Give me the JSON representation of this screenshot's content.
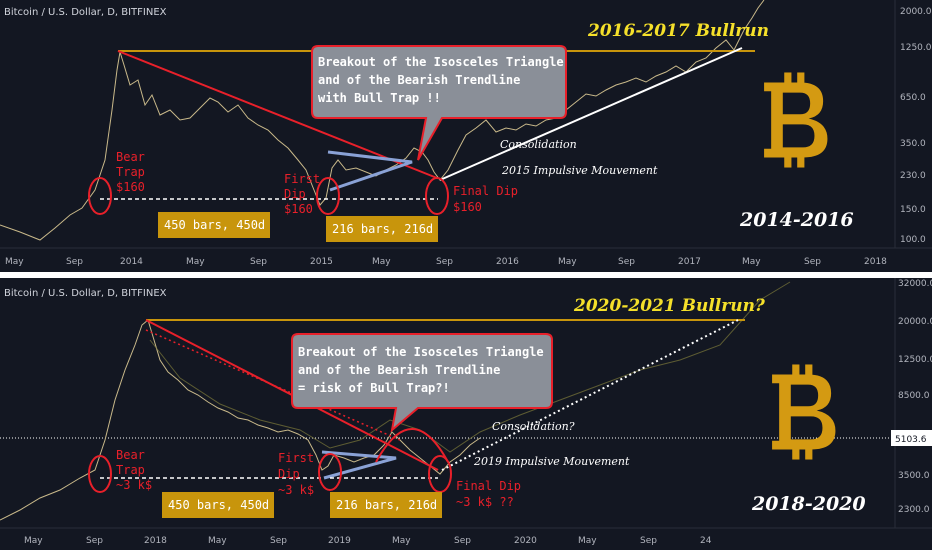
{
  "chart_data": [
    {
      "type": "line",
      "header": "Bitcoin / U.S. Dollar, D, BITFINEX",
      "bullrun_label": "2016-2017 Bullrun",
      "period_label": "2014-2016",
      "x_ticks": [
        "May",
        "Sep",
        "2014",
        "May",
        "Sep",
        "2015",
        "May",
        "Sep",
        "2016",
        "May",
        "Sep",
        "2017",
        "May",
        "Sep",
        "2018"
      ],
      "y_ticks": [
        "2000.0",
        "1250.0",
        "650.0",
        "350.0",
        "230.0",
        "150.0",
        "100.0"
      ],
      "annotations": {
        "bear_trap": [
          "Bear",
          "Trap",
          "$160"
        ],
        "first_dip": [
          "First",
          "Dip",
          "$160"
        ],
        "final_dip": [
          "Final Dip",
          "$160"
        ],
        "bars_1": "450 bars, 450d",
        "bars_2": "216 bars, 216d",
        "consolidation": "Consolidation",
        "impulsive": "2015 Impulsive Mouvement",
        "bubble": [
          "Breakout of the Isosceles Triangle",
          "and of the Bearish Trendline",
          "with Bull Trap !!"
        ]
      }
    },
    {
      "type": "line",
      "header": "Bitcoin / U.S. Dollar, D, BITFINEX",
      "bullrun_label": "2020-2021 Bullrun?",
      "period_label": "2018-2020",
      "x_ticks": [
        "May",
        "Sep",
        "2018",
        "May",
        "Sep",
        "2019",
        "May",
        "Sep",
        "2020",
        "May",
        "Sep",
        "24"
      ],
      "y_ticks": [
        "32000.0",
        "20000.0",
        "12500.0",
        "8500.0",
        "5103.6",
        "3500.0",
        "2300.0"
      ],
      "current_price": "5103.6",
      "annotations": {
        "bear_trap": [
          "Bear",
          "Trap",
          "~3 k$"
        ],
        "first_dip": [
          "First",
          "Dip",
          "~3 k$"
        ],
        "final_dip": [
          "Final Dip",
          "~3 k$ ??"
        ],
        "bars_1": "450 bars, 450d",
        "bars_2": "216 bars, 216d",
        "consolidation": "Consolidation?",
        "impulsive": "2019 Impulsive Mouvement",
        "bubble": [
          "Breakout of the Isosceles Triangle",
          "and of the Bearish Trendline",
          "= risk of Bull Trap?!"
        ]
      }
    }
  ],
  "colors": {
    "background": "#131722",
    "price": "#c9b98a",
    "gold": "#c8950c",
    "red": "#e8202a",
    "triangle": "#8aa2d6",
    "bitcoin": "#d49a12"
  },
  "icons": [
    "bitcoin-logo-icon",
    "bitcoin-logo-icon"
  ]
}
